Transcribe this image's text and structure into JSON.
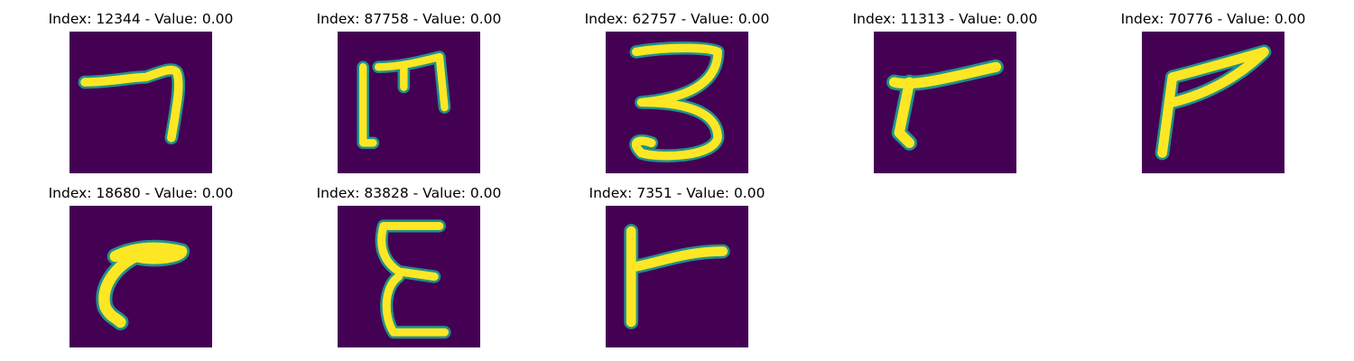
{
  "figure": {
    "background": "#ffffff",
    "colormap": "viridis",
    "colors": {
      "low": "#440154",
      "mid": "#21918c",
      "high": "#fde725"
    },
    "panels": [
      {
        "title": "Index: 12344 - Value: 0.00",
        "index": 12344,
        "value": 0.0,
        "glyph": "seven-like stroke"
      },
      {
        "title": "Index: 87758 - Value: 0.00",
        "index": 87758,
        "value": 0.0,
        "glyph": "M-like stroke"
      },
      {
        "title": "Index: 62757 - Value: 0.00",
        "index": 62757,
        "value": 0.0,
        "glyph": "three"
      },
      {
        "title": "Index: 11313 - Value: 0.00",
        "index": 11313,
        "value": 0.0,
        "glyph": "r-like stroke"
      },
      {
        "title": "Index: 70776 - Value: 0.00",
        "index": 70776,
        "value": 0.0,
        "glyph": "P-like stroke"
      },
      {
        "title": "Index: 18680 - Value: 0.00",
        "index": 18680,
        "value": 0.0,
        "glyph": "r-like curve"
      },
      {
        "title": "Index: 83828 - Value: 0.00",
        "index": 83828,
        "value": 0.0,
        "glyph": "epsilon"
      },
      {
        "title": "Index: 7351 - Value: 0.00",
        "index": 7351,
        "value": 0.0,
        "glyph": "r-like stroke"
      }
    ]
  }
}
